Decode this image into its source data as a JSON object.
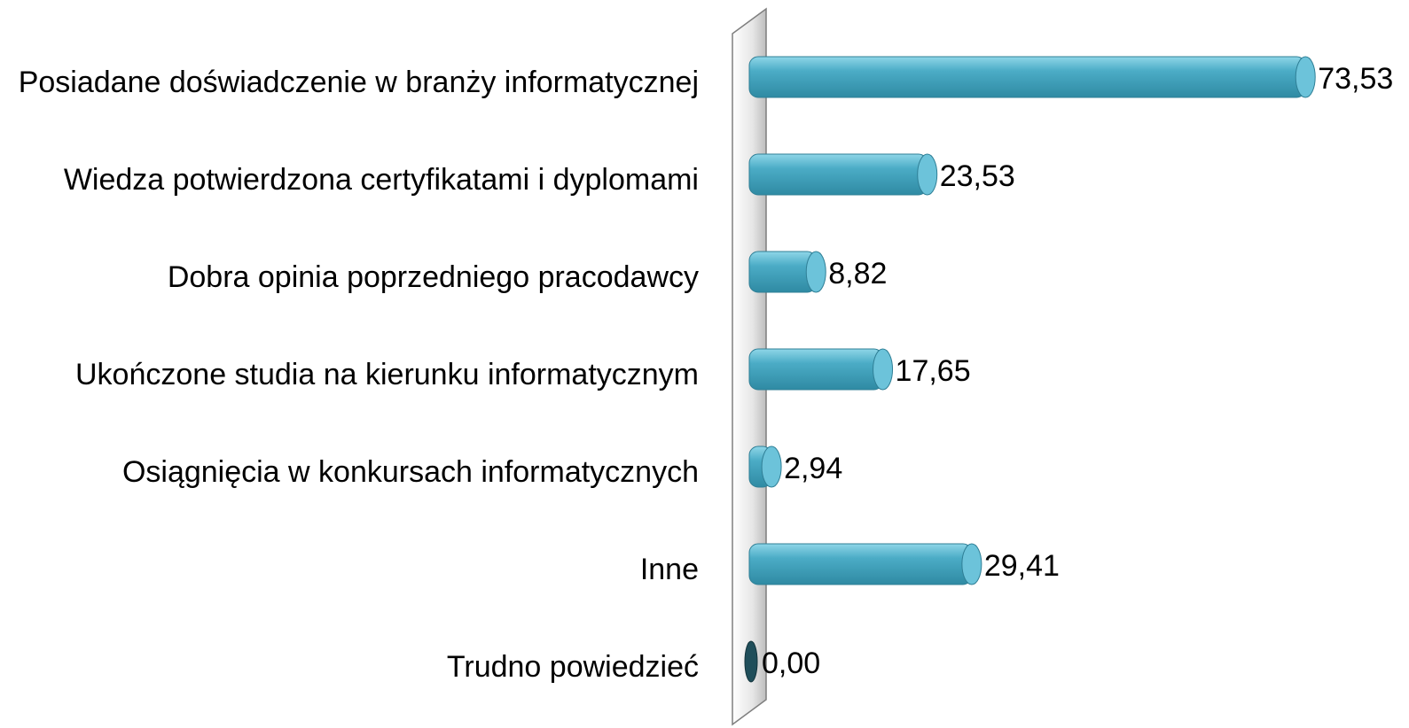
{
  "chart_data": {
    "type": "bar",
    "orientation": "horizontal",
    "categories": [
      "Posiadane doświadczenie w branży informatycznej",
      "Wiedza potwierdzona certyfikatami i dyplomami",
      "Dobra opinia poprzedniego pracodawcy",
      "Ukończone studia na kierunku informatycznym",
      "Osiągnięcia w konkursach informatycznych",
      "Inne",
      "Trudno powiedzieć"
    ],
    "values": [
      73.53,
      23.53,
      8.82,
      17.65,
      2.94,
      29.41,
      0
    ],
    "value_labels": [
      "73,53",
      "23,53",
      "8,82",
      "17,65",
      "2,94",
      "29,41",
      "0,00"
    ],
    "color": "#4bacc6"
  }
}
